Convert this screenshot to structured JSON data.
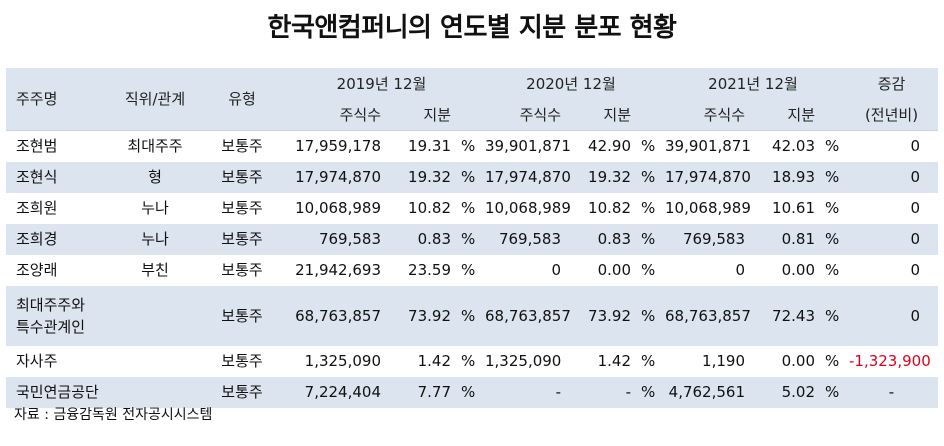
{
  "title": "한국앤컴퍼니의 연도별 지분 분포 현황",
  "header": {
    "shareholder": "주주명",
    "position": "직위/관계",
    "type": "유형",
    "year2019": "2019년 12월",
    "year2020": "2020년 12월",
    "year2021": "2021년 12월",
    "change": "증감",
    "shares": "주식수",
    "stake": "지분",
    "change_sub": "(전년비)"
  },
  "rows": [
    {
      "name": "조현범",
      "relation": "최대주주",
      "type": "보통주",
      "s2019": "17,959,178",
      "p2019": "19.31",
      "u2019": "%",
      "s2020": "39,901,871",
      "p2020": "42.90",
      "u2020": "%",
      "s2021": "39,901,871",
      "p2021": "42.03",
      "u2021": "%",
      "change": "0"
    },
    {
      "name": "조현식",
      "relation": "형",
      "type": "보통주",
      "s2019": "17,974,870",
      "p2019": "19.32",
      "u2019": "%",
      "s2020": "17,974,870",
      "p2020": "19.32",
      "u2020": "%",
      "s2021": "17,974,870",
      "p2021": "18.93",
      "u2021": "%",
      "change": "0"
    },
    {
      "name": "조희원",
      "relation": "누나",
      "type": "보통주",
      "s2019": "10,068,989",
      "p2019": "10.82",
      "u2019": "%",
      "s2020": "10,068,989",
      "p2020": "10.82",
      "u2020": "%",
      "s2021": "10,068,989",
      "p2021": "10.61",
      "u2021": "%",
      "change": "0"
    },
    {
      "name": "조희경",
      "relation": "누나",
      "type": "보통주",
      "s2019": "769,583",
      "p2019": "0.83",
      "u2019": "%",
      "s2020": "769,583",
      "p2020": "0.83",
      "u2020": "%",
      "s2021": "769,583",
      "p2021": "0.81",
      "u2021": "%",
      "change": "0"
    },
    {
      "name": "조양래",
      "relation": "부친",
      "type": "보통주",
      "s2019": "21,942,693",
      "p2019": "23.59",
      "u2019": "%",
      "s2020": "0",
      "p2020": "0.00",
      "u2020": "%",
      "s2021": "0",
      "p2021": "0.00",
      "u2021": "%",
      "change": "0"
    },
    {
      "name_line1": "최대주주와",
      "name_line2": "특수관계인",
      "relation": "",
      "type": "보통주",
      "s2019": "68,763,857",
      "p2019": "73.92",
      "u2019": "%",
      "s2020": "68,763,857",
      "p2020": "73.92",
      "u2020": "%",
      "s2021": "68,763,857",
      "p2021": "72.43",
      "u2021": "%",
      "change": "0"
    },
    {
      "name": "자사주",
      "relation": "",
      "type": "보통주",
      "s2019": "1,325,090",
      "p2019": "1.42",
      "u2019": "%",
      "s2020": "1,325,090",
      "p2020": "1.42",
      "u2020": "%",
      "s2021": "1,190",
      "p2021": "0.00",
      "u2021": "%",
      "change": "-1,323,900"
    },
    {
      "name": "국민연금공단",
      "relation": "",
      "type": "보통주",
      "s2019": "7,224,404",
      "p2019": "7.77",
      "u2019": "%",
      "s2020": "-",
      "p2020": "-",
      "u2020": "%",
      "s2021": "4,762,561",
      "p2021": "5.02",
      "u2021": "%",
      "change": "-"
    }
  ],
  "source": "자료 : 금융감독원 전자공시시스템",
  "colors": {
    "header_bg": "#dbe4ef",
    "negative": "#e0001b"
  }
}
